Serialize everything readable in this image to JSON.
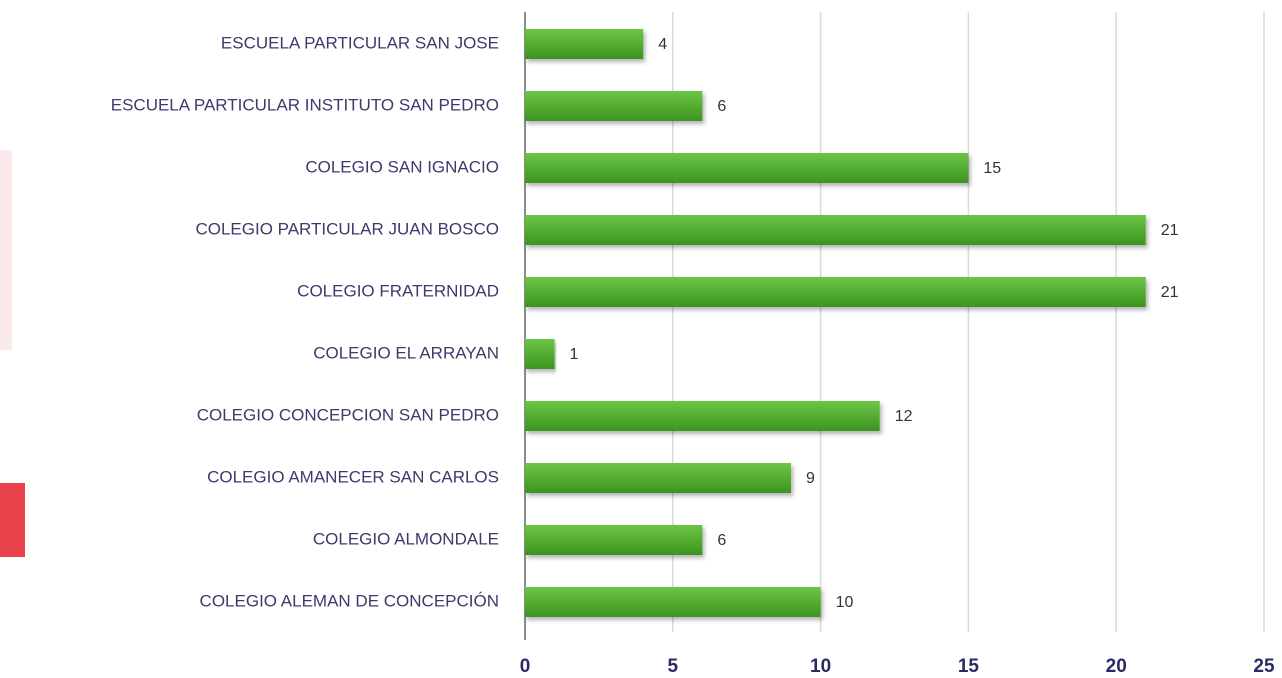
{
  "chart_data": {
    "type": "bar",
    "orientation": "horizontal",
    "categories": [
      "ESCUELA PARTICULAR SAN JOSE",
      "ESCUELA PARTICULAR INSTITUTO SAN PEDRO",
      "COLEGIO SAN IGNACIO",
      "COLEGIO PARTICULAR JUAN BOSCO",
      "COLEGIO FRATERNIDAD",
      "COLEGIO EL ARRAYAN",
      "COLEGIO CONCEPCION SAN PEDRO",
      "COLEGIO AMANECER SAN CARLOS",
      "COLEGIO ALMONDALE",
      "COLEGIO ALEMAN DE CONCEPCIÓN"
    ],
    "values": [
      4,
      6,
      15,
      21,
      21,
      1,
      12,
      9,
      6,
      10
    ],
    "color": "#4ea82e",
    "xlim": [
      0,
      25
    ],
    "xticks": [
      0,
      5,
      10,
      15,
      20,
      25
    ],
    "grid": true
  }
}
